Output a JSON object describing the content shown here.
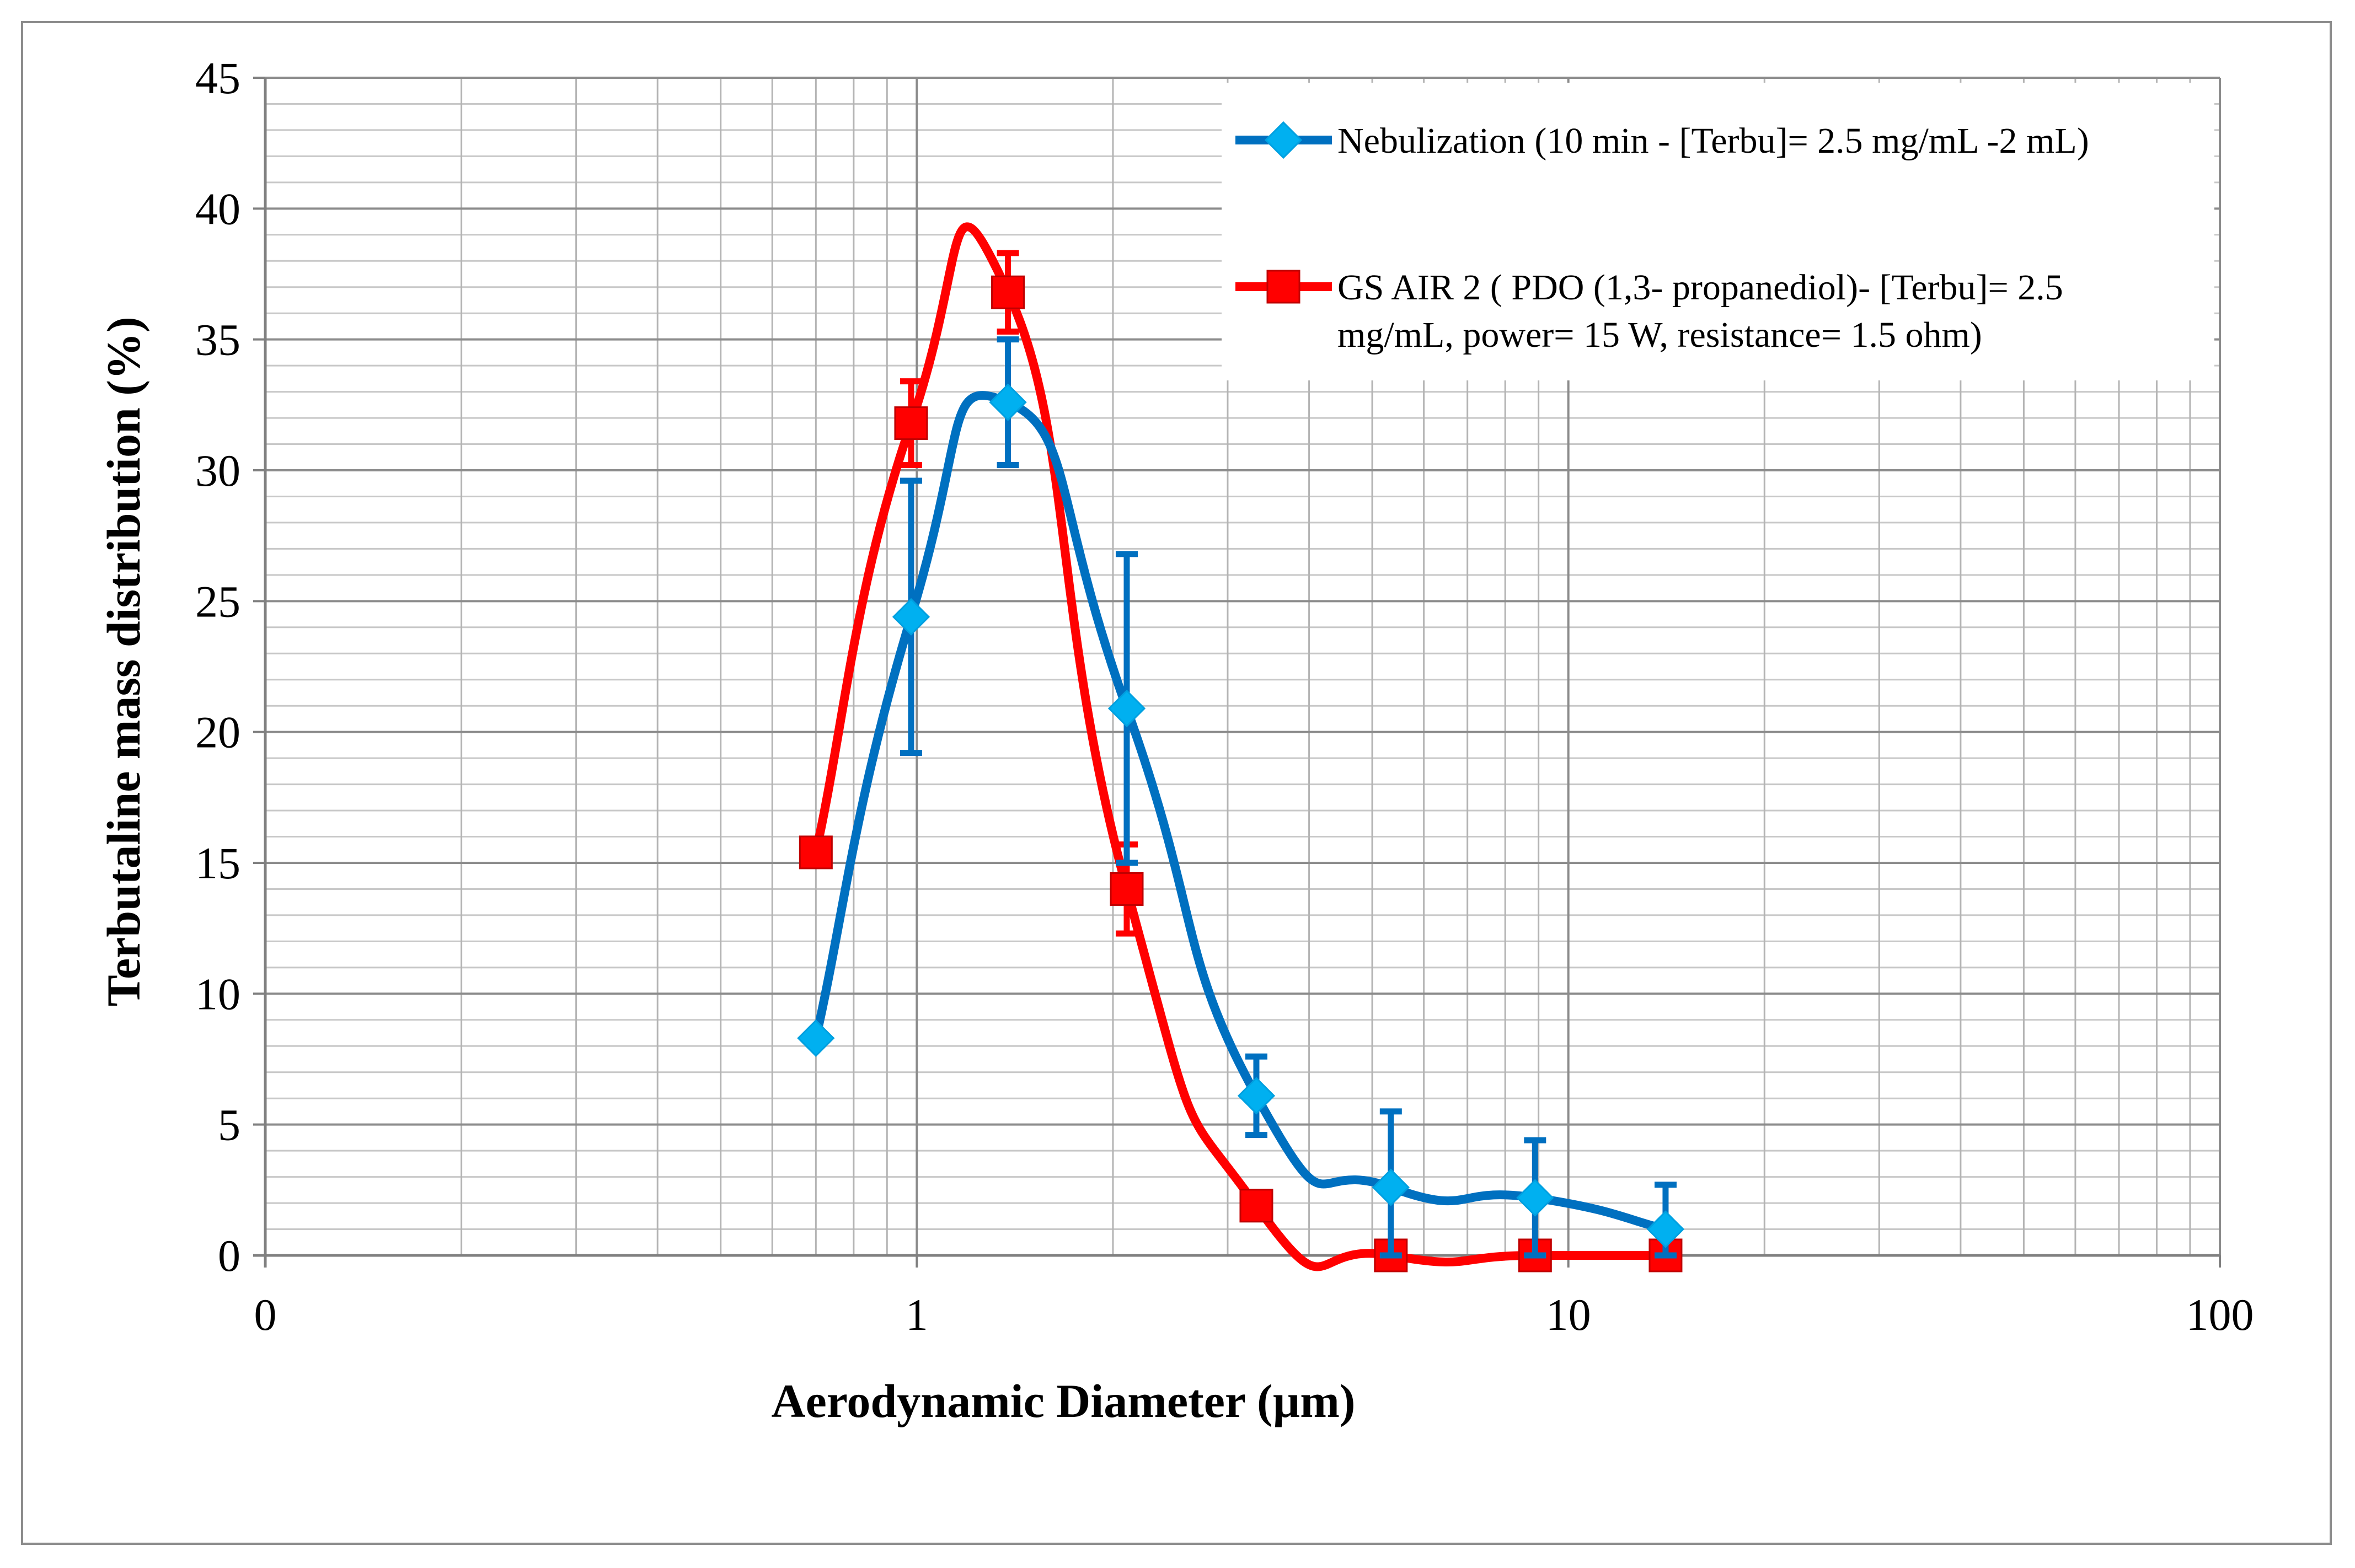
{
  "chart_data": {
    "type": "line",
    "xscale": "log",
    "xlabel": "Aerodynamic Diameter (µm)",
    "ylabel": "Terbutaline mass distribution (%)",
    "xlim": [
      0.1,
      100
    ],
    "ylim": [
      0,
      45
    ],
    "x_tick_labels": [
      "0",
      "1",
      "10",
      "100"
    ],
    "y_ticks": [
      0,
      5,
      10,
      15,
      20,
      25,
      30,
      35,
      40,
      45
    ],
    "grid": true,
    "legend_position": "top-right",
    "series": [
      {
        "name": "Nebulization (10 min - [Terbu]= 2.5 mg/mL -2 mL)",
        "color": "#0070c0",
        "marker_color": "#00b0f0",
        "marker": "diamond",
        "x": [
          0.7,
          0.98,
          1.38,
          2.1,
          3.32,
          5.34,
          8.89,
          14.1
        ],
        "y": [
          8.3,
          24.4,
          32.6,
          20.9,
          6.1,
          2.6,
          2.2,
          1.0
        ],
        "error": [
          0,
          5.2,
          2.4,
          5.9,
          1.5,
          2.9,
          2.2,
          1.7
        ]
      },
      {
        "name": "GS AIR 2 ( PDO (1,3- propanediol)- [Terbu]= 2.5 mg/mL, power= 15 W, resistance= 1.5 ohm)",
        "legend_lines": [
          "GS AIR 2 ( PDO (1,3- propanediol)- [Terbu]= 2.5",
          "mg/mL, power= 15 W, resistance= 1.5 ohm)"
        ],
        "color": "#ff0000",
        "marker_color": "#ff0000",
        "marker": "square",
        "x": [
          0.7,
          0.98,
          1.38,
          2.1,
          3.32,
          5.34,
          8.89,
          14.1
        ],
        "y": [
          15.4,
          31.8,
          36.8,
          14.0,
          1.9,
          0.0,
          0.0,
          0.0
        ],
        "error": [
          0,
          1.6,
          1.5,
          1.7,
          0,
          0,
          0,
          0
        ]
      }
    ]
  }
}
